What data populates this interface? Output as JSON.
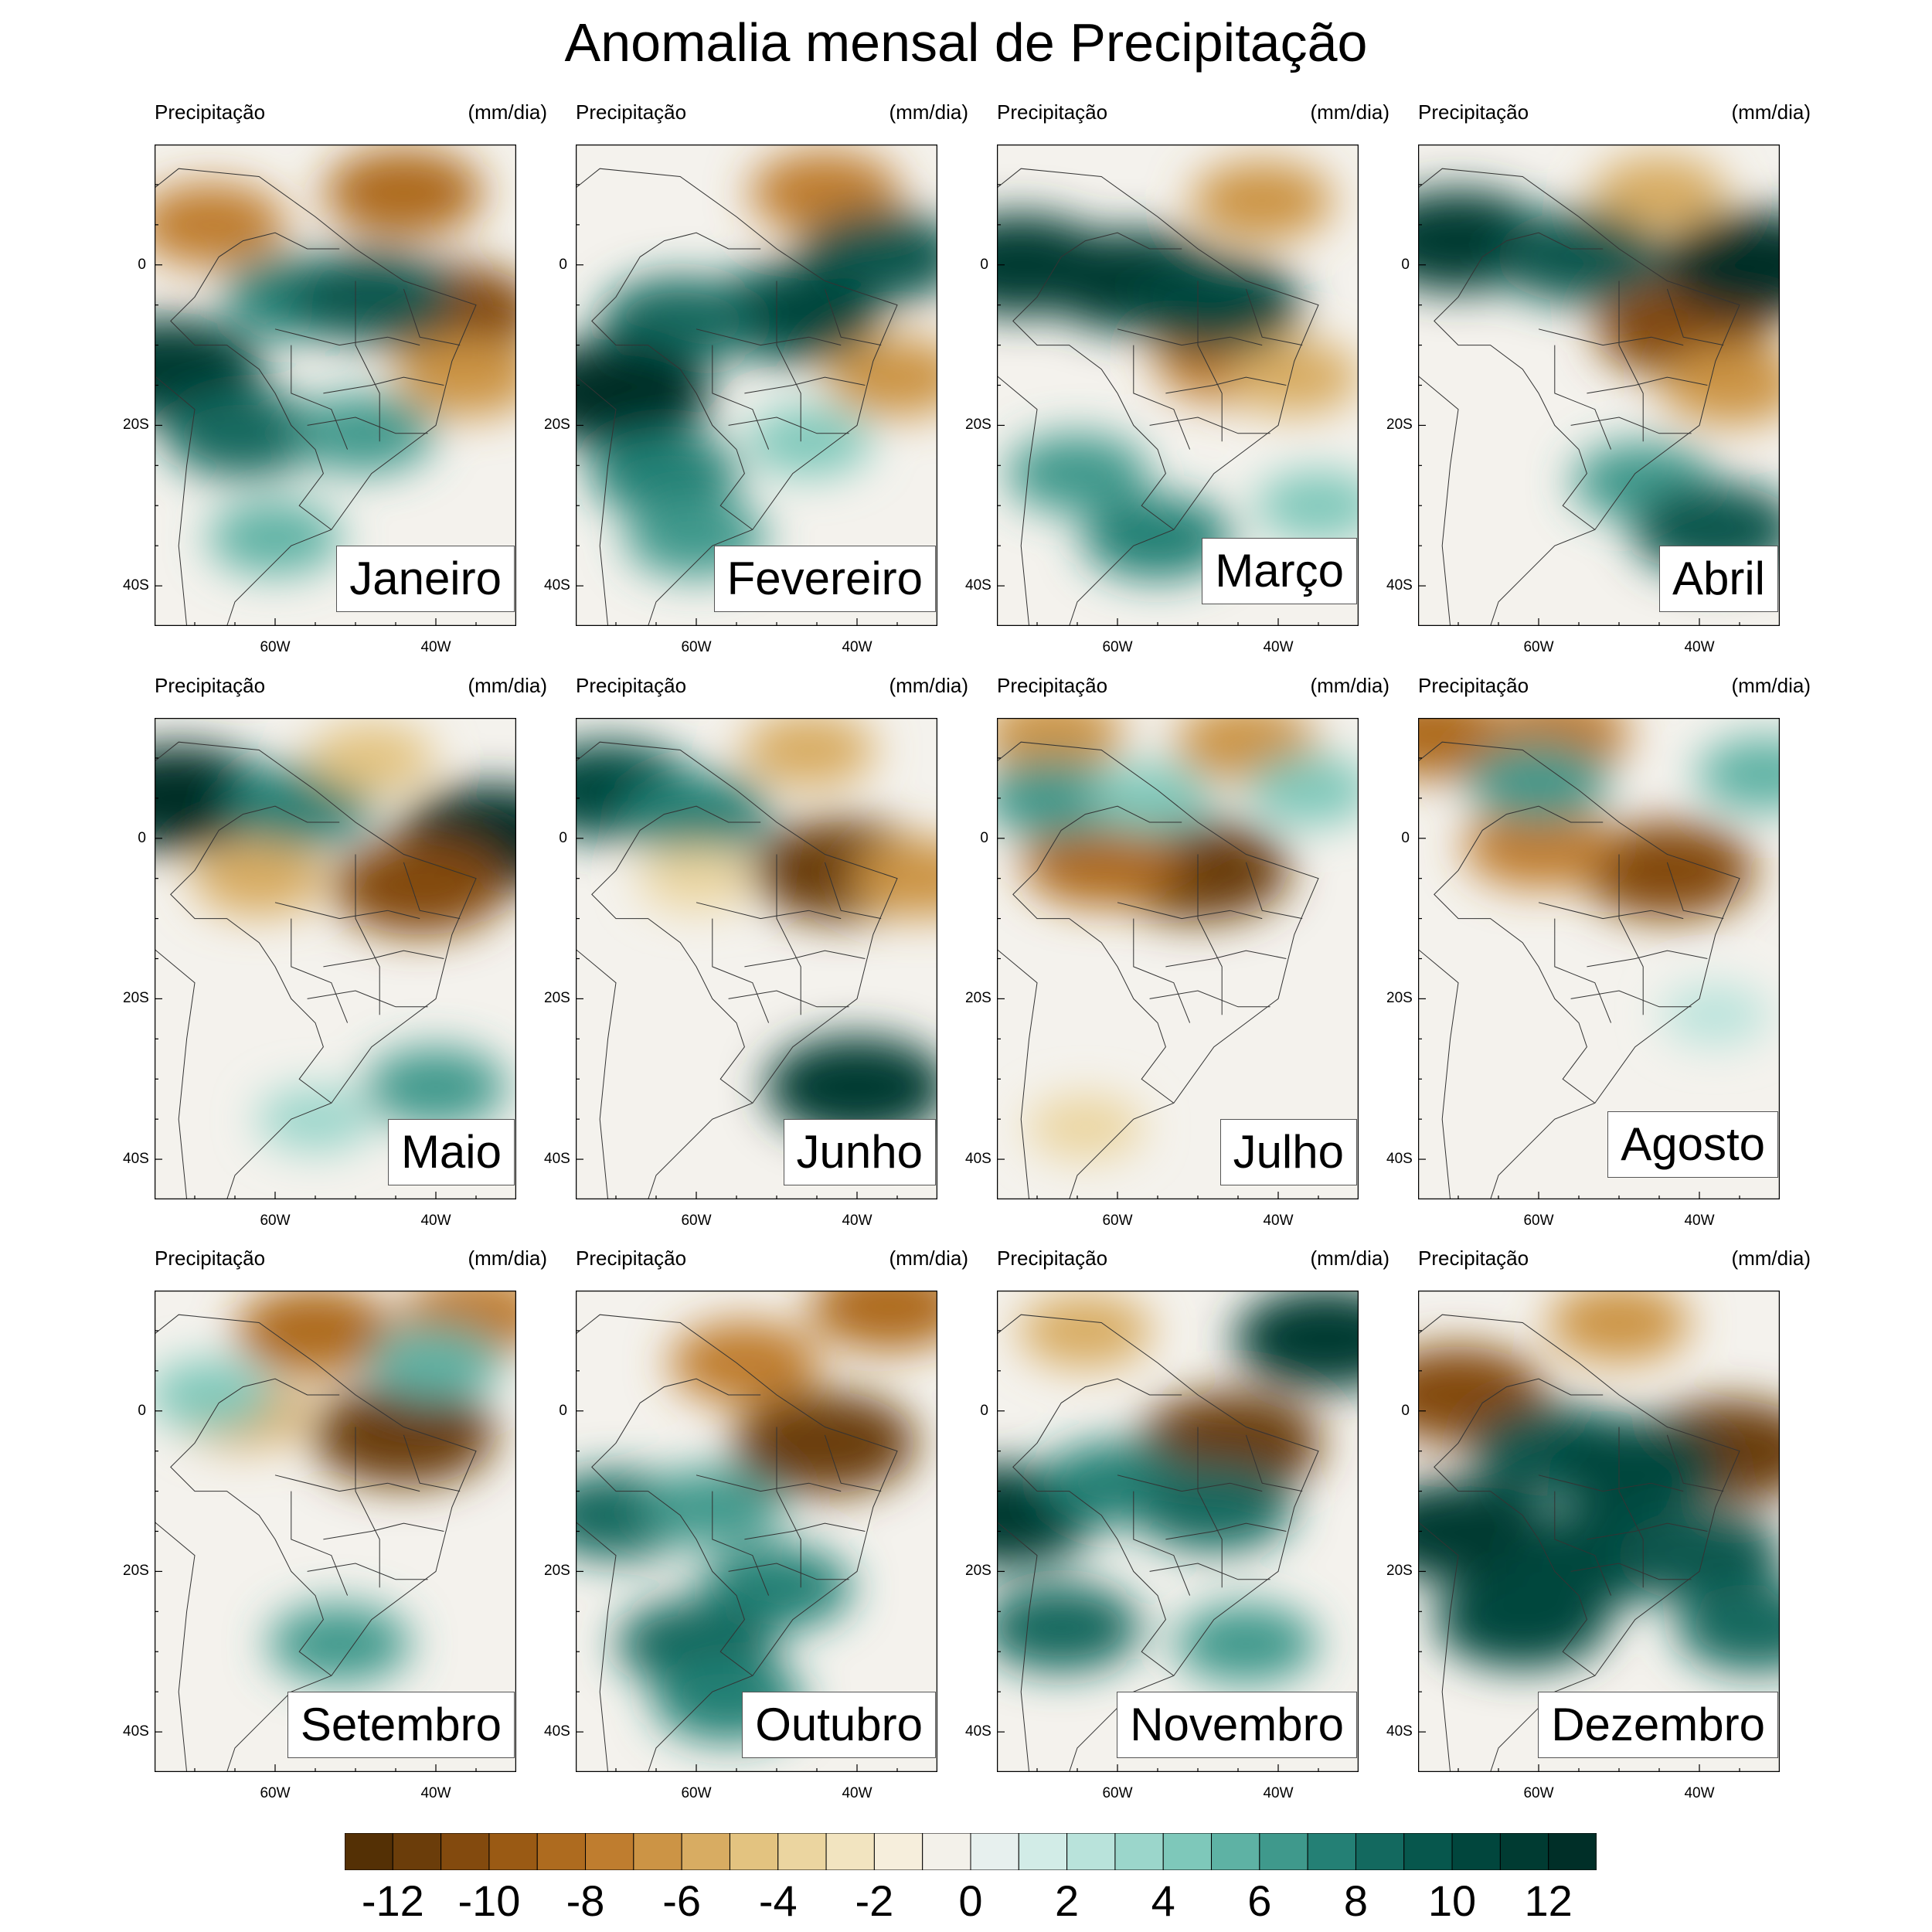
{
  "title": "Anomalia mensal de Precipitação",
  "panel_left_label": "Precipitação",
  "panel_right_label": "(mm/dia)",
  "lat_ticks": [
    "0",
    "20S",
    "40S"
  ],
  "lon_ticks": [
    "60W",
    "40W"
  ],
  "colors": {
    "dry_strong": "#3f2406",
    "neutral": "#f4f2ed",
    "wet_strong": "#013c34",
    "frame": "#000000",
    "borders": "#333333"
  },
  "colorbar": {
    "colors": [
      "#543005",
      "#6b3d0a",
      "#834a0e",
      "#9a5a14",
      "#ae6b1f",
      "#bf7d2f",
      "#cc9445",
      "#d8ac62",
      "#e3c380",
      "#ebd5a0",
      "#f2e4c0",
      "#f6eedc",
      "#f3f1ea",
      "#e7f0ee",
      "#d2ece7",
      "#b9e3db",
      "#9bd6cb",
      "#7ec8ba",
      "#5eb2a4",
      "#3f998c",
      "#248075",
      "#13695f",
      "#07574d",
      "#01463d",
      "#003b32",
      "#002f28"
    ],
    "tick_labels": [
      "-12",
      "-10",
      "-8",
      "-6",
      "-4",
      "-2",
      "0",
      "2",
      "4",
      "6",
      "8",
      "10",
      "12"
    ]
  },
  "map_data": {
    "variable": "Precipitação",
    "units": "mm/dia",
    "extent": {
      "lon": [
        -75,
        -30
      ],
      "lat": [
        -45,
        15
      ]
    },
    "months": [
      {
        "name": "Janeiro",
        "features": [
          {
            "lon": -44,
            "lat": 9,
            "value": -9
          },
          {
            "lon": -68,
            "lat": 5,
            "value": -8
          },
          {
            "lon": -38,
            "lat": -6,
            "value": -11
          },
          {
            "lon": -36,
            "lat": -14,
            "value": -7
          },
          {
            "lon": -57,
            "lat": -4,
            "value": 8
          },
          {
            "lon": -48,
            "lat": -4,
            "value": 10
          },
          {
            "lon": -73,
            "lat": -13,
            "value": 12
          },
          {
            "lon": -64,
            "lat": -21,
            "value": 9
          },
          {
            "lon": -49,
            "lat": -21,
            "value": 7
          },
          {
            "lon": -60,
            "lat": -34,
            "value": 6
          }
        ]
      },
      {
        "name": "Fevereiro",
        "features": [
          {
            "lon": -44,
            "lat": 9,
            "value": -8
          },
          {
            "lon": -35,
            "lat": -14,
            "value": -7
          },
          {
            "lon": -37,
            "lat": 1,
            "value": 10
          },
          {
            "lon": -48,
            "lat": -6,
            "value": 11
          },
          {
            "lon": -62,
            "lat": -7,
            "value": 9
          },
          {
            "lon": -70,
            "lat": -16,
            "value": 13
          },
          {
            "lon": -64,
            "lat": -26,
            "value": 8
          },
          {
            "lon": -60,
            "lat": -34,
            "value": 7
          },
          {
            "lon": -46,
            "lat": -22,
            "value": 5
          }
        ]
      },
      {
        "name": "Março",
        "features": [
          {
            "lon": -42,
            "lat": 8,
            "value": -7
          },
          {
            "lon": -46,
            "lat": -12,
            "value": -8
          },
          {
            "lon": -38,
            "lat": -14,
            "value": -6
          },
          {
            "lon": -72,
            "lat": 0,
            "value": 12
          },
          {
            "lon": -58,
            "lat": -2,
            "value": 12
          },
          {
            "lon": -48,
            "lat": -5,
            "value": 11
          },
          {
            "lon": -65,
            "lat": -26,
            "value": 7
          },
          {
            "lon": -55,
            "lat": -34,
            "value": 8
          },
          {
            "lon": -35,
            "lat": -30,
            "value": 5
          }
        ]
      },
      {
        "name": "Abril",
        "features": [
          {
            "lon": -45,
            "lat": 9,
            "value": -6
          },
          {
            "lon": -42,
            "lat": -8,
            "value": -11
          },
          {
            "lon": -36,
            "lat": -15,
            "value": -7
          },
          {
            "lon": -70,
            "lat": 3,
            "value": 12
          },
          {
            "lon": -55,
            "lat": 1,
            "value": 10
          },
          {
            "lon": -33,
            "lat": 0,
            "value": 13
          },
          {
            "lon": -47,
            "lat": -27,
            "value": 7
          },
          {
            "lon": -38,
            "lat": -33,
            "value": 10
          }
        ]
      },
      {
        "name": "Maio",
        "features": [
          {
            "lon": -72,
            "lat": 5,
            "value": 13
          },
          {
            "lon": -57,
            "lat": 4,
            "value": 8
          },
          {
            "lon": -33,
            "lat": 0,
            "value": 13
          },
          {
            "lon": -42,
            "lat": -6,
            "value": -11
          },
          {
            "lon": -62,
            "lat": -5,
            "value": -6
          },
          {
            "lon": -48,
            "lat": 10,
            "value": -5
          },
          {
            "lon": -40,
            "lat": -31,
            "value": 7
          },
          {
            "lon": -55,
            "lat": -35,
            "value": 4
          }
        ]
      },
      {
        "name": "Junho",
        "features": [
          {
            "lon": -71,
            "lat": 6,
            "value": 11
          },
          {
            "lon": -60,
            "lat": 3,
            "value": 8
          },
          {
            "lon": -42,
            "lat": -4,
            "value": -12
          },
          {
            "lon": -46,
            "lat": 11,
            "value": -6
          },
          {
            "lon": -32,
            "lat": -5,
            "value": -7
          },
          {
            "lon": -40,
            "lat": -31,
            "value": 12
          },
          {
            "lon": -60,
            "lat": -5,
            "value": -4
          }
        ]
      },
      {
        "name": "Julho",
        "features": [
          {
            "lon": -68,
            "lat": 13,
            "value": -7
          },
          {
            "lon": -44,
            "lat": 12,
            "value": -7
          },
          {
            "lon": -50,
            "lat": -4,
            "value": -12
          },
          {
            "lon": -62,
            "lat": -3,
            "value": -9
          },
          {
            "lon": -68,
            "lat": 5,
            "value": 7
          },
          {
            "lon": -56,
            "lat": 5,
            "value": 5
          },
          {
            "lon": -36,
            "lat": 6,
            "value": 5
          },
          {
            "lon": -64,
            "lat": -36,
            "value": -4
          }
        ]
      },
      {
        "name": "Agosto",
        "features": [
          {
            "lon": -73,
            "lat": 13,
            "value": -9
          },
          {
            "lon": -58,
            "lat": 13,
            "value": -8
          },
          {
            "lon": -44,
            "lat": -4,
            "value": -11
          },
          {
            "lon": -60,
            "lat": -1,
            "value": -8
          },
          {
            "lon": -60,
            "lat": 7,
            "value": 7
          },
          {
            "lon": -32,
            "lat": 8,
            "value": 6
          },
          {
            "lon": -38,
            "lat": -22,
            "value": 3
          }
        ]
      },
      {
        "name": "Setembro",
        "features": [
          {
            "lon": -55,
            "lat": 10,
            "value": -9
          },
          {
            "lon": -35,
            "lat": 12,
            "value": -8
          },
          {
            "lon": -44,
            "lat": -3,
            "value": -12
          },
          {
            "lon": -64,
            "lat": 0,
            "value": -6
          },
          {
            "lon": -40,
            "lat": 6,
            "value": 6
          },
          {
            "lon": -52,
            "lat": -29,
            "value": 7
          },
          {
            "lon": -68,
            "lat": 2,
            "value": 5
          }
        ]
      },
      {
        "name": "Outubro",
        "features": [
          {
            "lon": -44,
            "lat": -4,
            "value": -12
          },
          {
            "lon": -54,
            "lat": 6,
            "value": -8
          },
          {
            "lon": -36,
            "lat": 13,
            "value": -9
          },
          {
            "lon": -70,
            "lat": -13,
            "value": 9
          },
          {
            "lon": -58,
            "lat": -12,
            "value": 7
          },
          {
            "lon": -50,
            "lat": -22,
            "value": 8
          },
          {
            "lon": -60,
            "lat": -29,
            "value": 9
          },
          {
            "lon": -56,
            "lat": -36,
            "value": 8
          }
        ]
      },
      {
        "name": "Novembro",
        "features": [
          {
            "lon": -46,
            "lat": -4,
            "value": -12
          },
          {
            "lon": -64,
            "lat": 10,
            "value": -6
          },
          {
            "lon": -34,
            "lat": 9,
            "value": 12
          },
          {
            "lon": -74,
            "lat": -13,
            "value": 12
          },
          {
            "lon": -60,
            "lat": -9,
            "value": 8
          },
          {
            "lon": -48,
            "lat": -12,
            "value": 9
          },
          {
            "lon": -67,
            "lat": -27,
            "value": 9
          },
          {
            "lon": -44,
            "lat": -29,
            "value": 7
          }
        ]
      },
      {
        "name": "Dezembro",
        "features": [
          {
            "lon": -70,
            "lat": 2,
            "value": -11
          },
          {
            "lon": -50,
            "lat": 11,
            "value": -7
          },
          {
            "lon": -36,
            "lat": -5,
            "value": -12
          },
          {
            "lon": -58,
            "lat": -5,
            "value": 10
          },
          {
            "lon": -48,
            "lat": -7,
            "value": 11
          },
          {
            "lon": -70,
            "lat": -15,
            "value": 12
          },
          {
            "lon": -62,
            "lat": -26,
            "value": 11
          },
          {
            "lon": -52,
            "lat": -18,
            "value": 11
          },
          {
            "lon": -40,
            "lat": -18,
            "value": 10
          },
          {
            "lon": -33,
            "lat": -27,
            "value": 9
          }
        ]
      }
    ]
  }
}
